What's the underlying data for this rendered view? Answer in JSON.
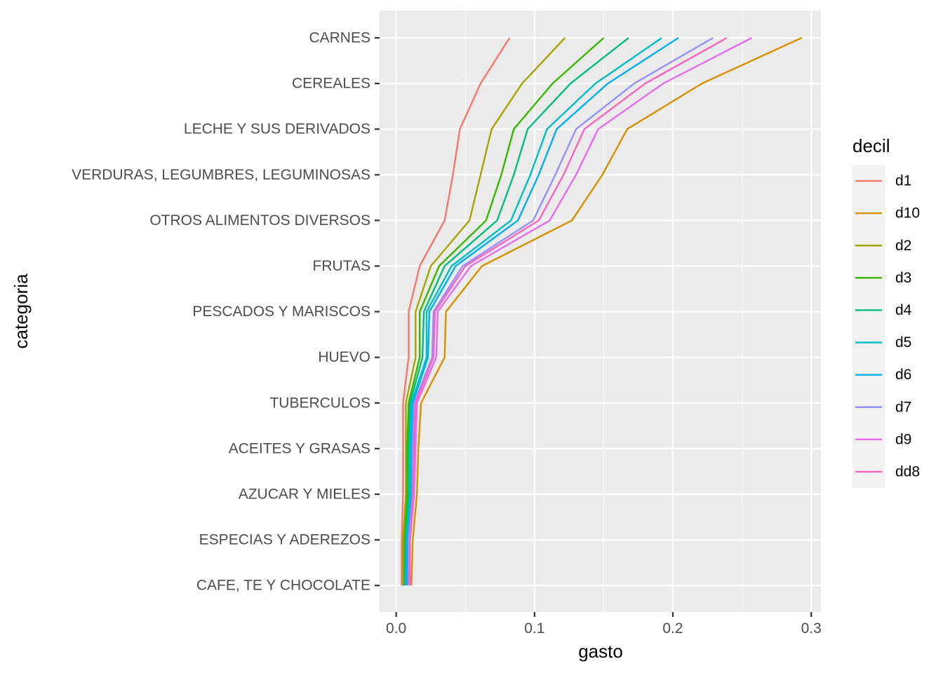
{
  "chart_data": {
    "type": "line",
    "title": "",
    "xlabel": "gasto",
    "ylabel": "categoria",
    "xlim": [
      -0.012,
      0.307
    ],
    "xticks": [
      0.0,
      0.1,
      0.2,
      0.3
    ],
    "xtick_labels": [
      "0.0",
      "0.1",
      "0.2",
      "0.3"
    ],
    "grid": true,
    "legend": {
      "title": "decil",
      "placement": "right"
    },
    "categories": [
      "CARNES",
      "CEREALES",
      "LECHE Y SUS DERIVADOS",
      "VERDURAS, LEGUMBRES, LEGUMINOSAS",
      "OTROS ALIMENTOS DIVERSOS",
      "FRUTAS",
      "PESCADOS Y MARISCOS",
      "HUEVO",
      "TUBERCULOS",
      "ACEITES Y GRASAS",
      "AZUCAR Y MIELES",
      "ESPECIAS Y ADEREZOS",
      "CAFE, TE Y CHOCOLATE"
    ],
    "series": [
      {
        "name": "d1",
        "color": "#F8766D",
        "values": [
          0.082,
          0.061,
          0.046,
          0.041,
          0.035,
          0.017,
          0.009,
          0.009,
          0.005,
          0.005,
          0.005,
          0.004,
          0.004
        ]
      },
      {
        "name": "d10",
        "color": "#D89000",
        "values": [
          0.293,
          0.221,
          0.167,
          0.149,
          0.127,
          0.062,
          0.036,
          0.035,
          0.018,
          0.016,
          0.015,
          0.012,
          0.011
        ]
      },
      {
        "name": "d2",
        "color": "#A3A500",
        "values": [
          0.122,
          0.091,
          0.069,
          0.061,
          0.053,
          0.025,
          0.014,
          0.014,
          0.007,
          0.007,
          0.007,
          0.005,
          0.005
        ]
      },
      {
        "name": "d3",
        "color": "#39B600",
        "values": [
          0.15,
          0.113,
          0.085,
          0.076,
          0.065,
          0.031,
          0.017,
          0.017,
          0.009,
          0.008,
          0.008,
          0.006,
          0.006
        ]
      },
      {
        "name": "d4",
        "color": "#00BF7D",
        "values": [
          0.168,
          0.126,
          0.095,
          0.085,
          0.073,
          0.035,
          0.02,
          0.019,
          0.01,
          0.009,
          0.009,
          0.007,
          0.006
        ]
      },
      {
        "name": "d5",
        "color": "#00BFC4",
        "values": [
          0.192,
          0.144,
          0.109,
          0.097,
          0.083,
          0.04,
          0.022,
          0.022,
          0.011,
          0.01,
          0.01,
          0.008,
          0.007
        ]
      },
      {
        "name": "d6",
        "color": "#00B0F6",
        "values": [
          0.204,
          0.153,
          0.116,
          0.103,
          0.088,
          0.043,
          0.024,
          0.023,
          0.012,
          0.011,
          0.011,
          0.008,
          0.008
        ]
      },
      {
        "name": "d7",
        "color": "#9590FF",
        "values": [
          0.229,
          0.172,
          0.13,
          0.115,
          0.099,
          0.048,
          0.027,
          0.026,
          0.013,
          0.012,
          0.012,
          0.009,
          0.009
        ]
      },
      {
        "name": "d9",
        "color": "#E76BF3",
        "values": [
          0.257,
          0.193,
          0.146,
          0.13,
          0.111,
          0.054,
          0.03,
          0.029,
          0.015,
          0.014,
          0.013,
          0.01,
          0.01
        ]
      },
      {
        "name": "dd8",
        "color": "#FF62BC",
        "values": [
          0.239,
          0.18,
          0.136,
          0.121,
          0.103,
          0.05,
          0.028,
          0.027,
          0.014,
          0.013,
          0.012,
          0.01,
          0.009
        ]
      }
    ]
  }
}
